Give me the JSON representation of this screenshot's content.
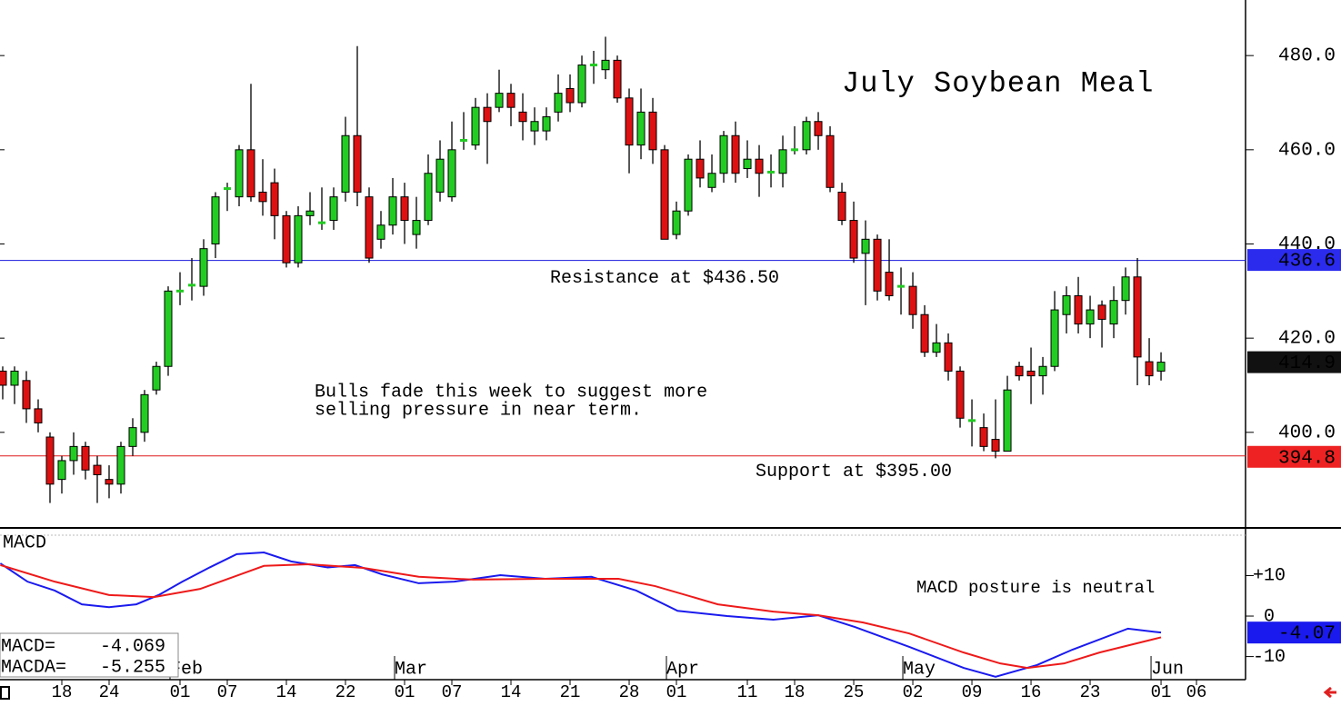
{
  "chart_data": [
    {
      "type": "candlestick",
      "title": "July Soybean Meal",
      "annotation": [
        "Bulls fade this week to suggest more",
        "selling pressure in near term."
      ],
      "x": [
        0,
        1,
        2,
        3,
        4,
        5,
        6,
        7,
        8,
        9,
        10,
        11,
        12,
        13,
        14,
        15,
        16,
        17,
        18,
        19,
        20,
        21,
        22,
        23,
        24,
        25,
        26,
        27,
        28,
        29,
        30,
        31,
        32,
        33,
        34,
        35,
        36,
        37,
        38,
        39,
        40,
        41,
        42,
        43,
        44,
        45,
        46,
        47,
        48,
        49,
        50,
        51,
        52,
        53,
        54,
        55,
        56,
        57,
        58,
        59,
        60,
        61,
        62,
        63,
        64,
        65,
        66,
        67,
        68,
        69,
        70,
        71,
        72,
        73,
        74,
        75,
        76,
        77,
        78,
        79,
        80,
        81,
        82,
        83,
        84,
        85,
        86,
        87,
        88,
        89,
        90,
        91,
        92,
        93,
        94,
        95,
        96,
        97,
        98
      ],
      "open": [
        413,
        410,
        411,
        405,
        399,
        390,
        394,
        397,
        393,
        390,
        389,
        397,
        400,
        409,
        414,
        430,
        431,
        431,
        440,
        451.5,
        450,
        460,
        451,
        453,
        446,
        436,
        446,
        444.5,
        445,
        451,
        463,
        450,
        441,
        444,
        450,
        442,
        445,
        451,
        450,
        462,
        461,
        469,
        469,
        472,
        468,
        464,
        464,
        468,
        473,
        470,
        478,
        477,
        479,
        471,
        461,
        468,
        460,
        442,
        447,
        458,
        452,
        455,
        463,
        456,
        458,
        455,
        455,
        460,
        460,
        466,
        463,
        451,
        445,
        438,
        441,
        434,
        431,
        431,
        425,
        417,
        419,
        413,
        402.5,
        401,
        398.5,
        396,
        414,
        413,
        412,
        414,
        425,
        429,
        423,
        427,
        423,
        428,
        433,
        415,
        413
      ],
      "high": [
        414,
        414,
        413,
        407,
        400,
        395,
        400,
        398,
        395,
        393,
        398,
        403,
        409,
        415,
        431,
        434,
        437,
        441,
        451,
        453,
        461,
        474,
        458,
        456,
        447,
        448,
        451,
        452,
        452,
        467,
        482,
        452,
        447,
        454,
        453,
        450,
        459,
        462,
        466,
        468,
        471,
        472,
        477,
        474,
        472,
        469,
        469,
        476,
        476,
        480,
        481,
        484,
        480,
        473,
        473,
        471,
        461,
        449,
        459,
        462,
        459,
        464,
        466,
        462,
        461,
        459,
        463,
        465,
        467,
        468,
        465,
        453,
        449,
        445,
        442,
        441,
        435,
        434,
        427,
        423,
        421,
        414,
        407,
        404,
        407,
        412,
        415,
        418,
        416,
        430,
        431,
        433,
        429,
        428,
        431,
        435,
        437,
        420,
        417
      ],
      "low": [
        407,
        406,
        402,
        400,
        385,
        387,
        391,
        390,
        385,
        386,
        387,
        395,
        398,
        408,
        412,
        427,
        428,
        429,
        437,
        447,
        448,
        449,
        446,
        441,
        435,
        435,
        444,
        443,
        443,
        449,
        448,
        436,
        439,
        442,
        440,
        439,
        444,
        449,
        449,
        460,
        460,
        457,
        468,
        465,
        462,
        461,
        462,
        466,
        468,
        469,
        474,
        475,
        470,
        455,
        458,
        457,
        441,
        441,
        446,
        452,
        451,
        453,
        453,
        454,
        450,
        452,
        452,
        459,
        459,
        460,
        451,
        444,
        436,
        427,
        428,
        428,
        425,
        422,
        416,
        416,
        411,
        401,
        397,
        396,
        394.5,
        396,
        411,
        406,
        408,
        413,
        421,
        421,
        420,
        418,
        420,
        425,
        410,
        410,
        411
      ],
      "close": [
        410,
        413,
        405,
        402,
        389,
        394,
        397,
        392,
        391,
        389,
        397,
        401,
        408,
        414,
        430,
        430,
        431.5,
        439,
        450,
        452,
        460,
        450,
        449,
        446,
        436,
        446,
        447,
        444.5,
        450,
        463,
        451,
        437,
        444,
        450,
        445,
        445,
        455,
        458,
        460,
        462,
        469,
        466,
        472,
        469,
        466,
        466,
        467,
        472,
        470,
        478,
        478,
        479,
        471,
        461,
        468,
        460,
        441,
        447,
        458,
        454,
        455,
        463,
        455,
        458,
        455,
        455.5,
        460,
        460,
        466,
        463,
        452,
        445,
        437,
        441,
        430,
        429,
        431,
        425,
        417,
        419,
        413,
        403,
        402.5,
        397,
        396,
        409,
        412,
        412,
        414,
        426,
        429,
        423,
        426,
        424,
        428,
        433,
        416,
        412,
        414.9
      ],
      "up_color": "#22cc22",
      "down_color": "#dd1111",
      "xlim": [
        -0.23,
        105.15
      ],
      "ylim": [
        379.9,
        491.8
      ],
      "yticks": [
        {
          "value": 400,
          "label": "400.0"
        },
        {
          "value": 420,
          "label": "420.0"
        },
        {
          "value": 440,
          "label": "440.0"
        },
        {
          "value": 460,
          "label": "460.0"
        },
        {
          "value": 480,
          "label": "480.0"
        }
      ],
      "xticks": [
        {
          "value": 5,
          "label": "18"
        },
        {
          "value": 9,
          "label": "24"
        },
        {
          "value": 15,
          "label": "01"
        },
        {
          "value": 19,
          "label": "07"
        },
        {
          "value": 24,
          "label": "14"
        },
        {
          "value": 29,
          "label": "22"
        },
        {
          "value": 34,
          "label": "01"
        },
        {
          "value": 38,
          "label": "07"
        },
        {
          "value": 43,
          "label": "14"
        },
        {
          "value": 48,
          "label": "21"
        },
        {
          "value": 53,
          "label": "28"
        },
        {
          "value": 57,
          "label": "01"
        },
        {
          "value": 63,
          "label": "11"
        },
        {
          "value": 67,
          "label": "18"
        },
        {
          "value": 72,
          "label": "25"
        },
        {
          "value": 77,
          "label": "02"
        },
        {
          "value": 82,
          "label": "09"
        },
        {
          "value": 87,
          "label": "16"
        },
        {
          "value": 92,
          "label": "23"
        },
        {
          "value": 98,
          "label": "01"
        },
        {
          "value": 101,
          "label": "06"
        }
      ],
      "month_labels": [
        {
          "value": 15,
          "label": "Feb"
        },
        {
          "value": 34,
          "label": "Mar"
        },
        {
          "value": 57,
          "label": "Apr"
        },
        {
          "value": 77,
          "label": "May"
        },
        {
          "value": 98,
          "label": "Jun"
        }
      ],
      "levels": [
        {
          "value": 436.5,
          "label": "Resistance at $436.50",
          "color": "#1a1add"
        },
        {
          "value": 395,
          "label": "Support at $395.00",
          "color": "#dd1a1a"
        }
      ],
      "price_markers": [
        {
          "value": 436.6,
          "color": "#2b2bee"
        },
        {
          "value": 414.9,
          "color": "#111111"
        },
        {
          "value": 394.8,
          "color": "#ee2222"
        }
      ]
    },
    {
      "type": "line",
      "title": "MACD",
      "note": "MACD posture is neutral",
      "xlim": [
        -0.23,
        105.15
      ],
      "ylim": [
        -15.7,
        20.2
      ],
      "yticks": [
        {
          "value": 10,
          "label": "+10"
        },
        0,
        -10
      ],
      "series": [
        {
          "color": "#1a1aee",
          "x": [
            -0.2,
            2.1,
            4.4,
            6.7,
            9,
            11.3,
            13.2,
            15.2,
            17.5,
            19.8,
            22.1,
            24.4,
            27.5,
            29.8,
            32.1,
            35.2,
            38.2,
            42.1,
            45.9,
            49.8,
            53.6,
            57.1,
            61.3,
            65.2,
            69,
            72.1,
            76.7,
            81.3,
            84,
            87.5,
            90.5,
            95.2,
            98
          ],
          "values": [
            13,
            8.5,
            6.3,
            2.9,
            2.2,
            2.9,
            5.2,
            8.5,
            12,
            15.3,
            15.7,
            13.5,
            12,
            12.6,
            10.3,
            8.1,
            8.5,
            10.1,
            9.2,
            9.7,
            6.3,
            1.3,
            0,
            -0.9,
            0.2,
            -2.7,
            -7.6,
            -12.8,
            -15,
            -12.1,
            -8.3,
            -3.1,
            -4.07
          ],
          "readout": {
            "label": "MACD=",
            "value": -4.069
          }
        },
        {
          "color": "#ee1a1a",
          "x": [
            -0.2,
            4.4,
            9,
            12.8,
            16.7,
            22.1,
            25.9,
            30.5,
            35.2,
            39.8,
            45.9,
            52.1,
            55.2,
            60.5,
            65.2,
            69,
            72.8,
            76.7,
            81.3,
            84.4,
            86.7,
            89.8,
            92.8,
            98
          ],
          "values": [
            12.6,
            8.5,
            5.2,
            4.7,
            6.7,
            12.4,
            12.8,
            11.9,
            9.7,
            9,
            9.2,
            9.2,
            7.4,
            2.9,
            1.1,
            0.2,
            -1.6,
            -4.3,
            -9,
            -11.7,
            -12.8,
            -11.7,
            -9,
            -5.255
          ],
          "readout": {
            "label": "MACDA=",
            "value": -5.255
          }
        }
      ]
    }
  ]
}
